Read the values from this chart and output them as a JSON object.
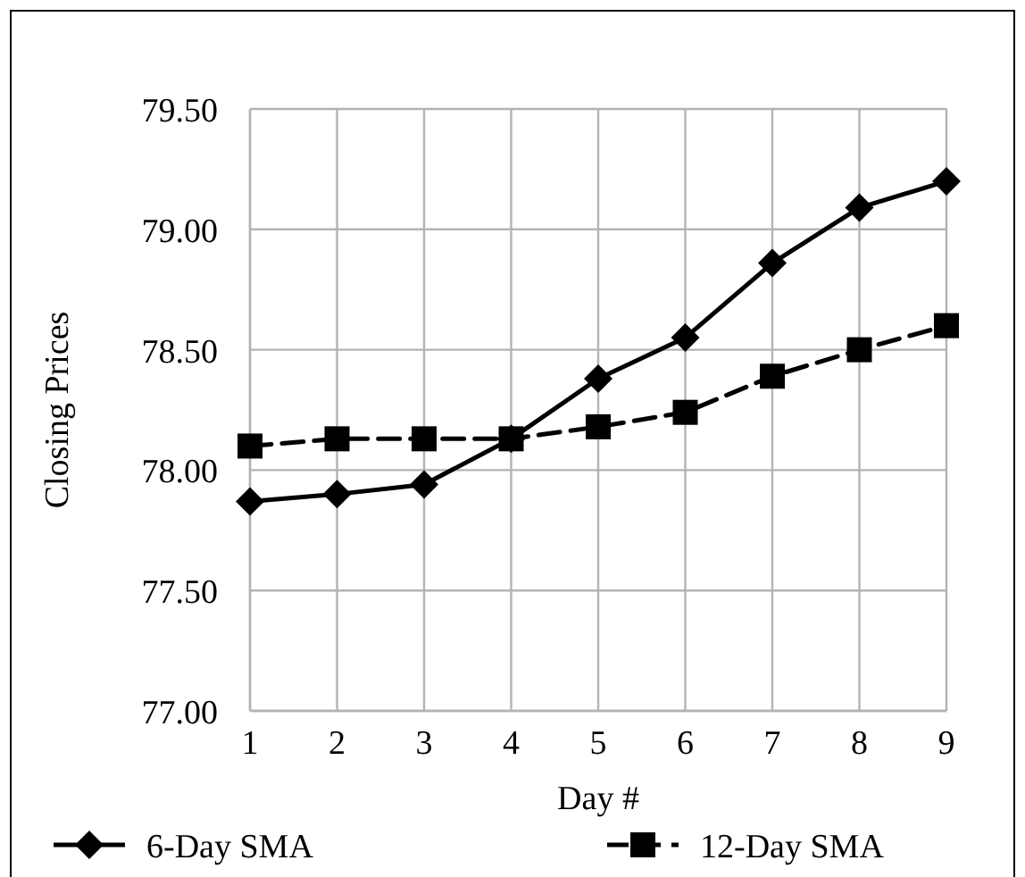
{
  "chart_data": {
    "type": "line",
    "xlabel": "Day #",
    "ylabel": "Closing Prices",
    "x": [
      1,
      2,
      3,
      4,
      5,
      6,
      7,
      8,
      9
    ],
    "xlim": [
      1,
      9
    ],
    "xticks": [
      1,
      2,
      3,
      4,
      5,
      6,
      7,
      8,
      9
    ],
    "ylim": [
      77,
      79.5
    ],
    "yticks": [
      {
        "value": 77,
        "label": "77.00"
      },
      {
        "value": 77.5,
        "label": "77.50"
      },
      {
        "value": 78,
        "label": "78.00"
      },
      {
        "value": 78.5,
        "label": "78.50"
      },
      {
        "value": 79,
        "label": "79.00"
      },
      {
        "value": 79.5,
        "label": "79.50"
      }
    ],
    "grid": true,
    "legend": "bottom",
    "series": [
      {
        "name": "6-Day SMA",
        "color": "#000000",
        "marker": "diamond",
        "line_style": "solid",
        "values": [
          77.87,
          77.9,
          77.94,
          78.13,
          78.38,
          78.55,
          78.86,
          79.09,
          79.2
        ]
      },
      {
        "name": "12-Day SMA",
        "color": "#000000",
        "marker": "square",
        "line_style": "dashed",
        "values": [
          78.1,
          78.13,
          78.13,
          78.13,
          78.18,
          78.24,
          78.39,
          78.5,
          78.6
        ]
      }
    ]
  }
}
